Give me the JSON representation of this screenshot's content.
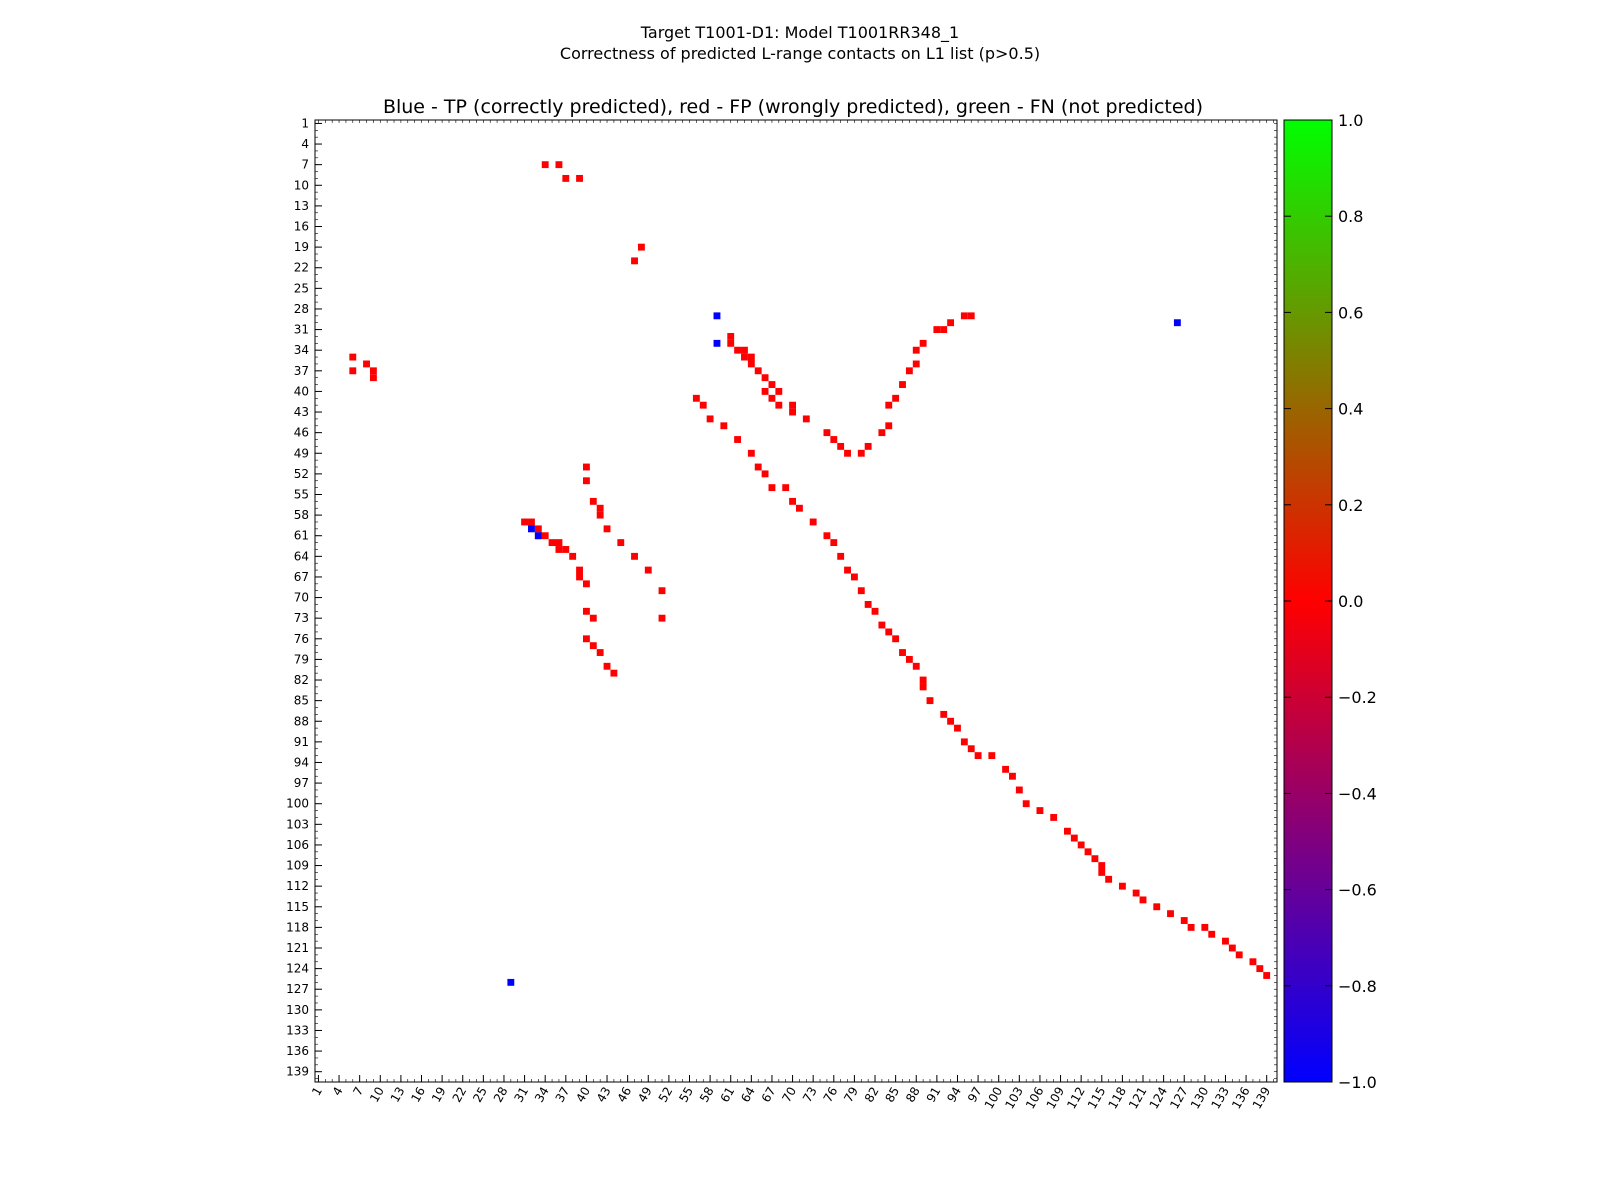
{
  "chart_data": {
    "type": "heatmap",
    "suptitle_line1": "Target T1001-D1: Model T1001RR348_1",
    "suptitle_line2": "Correctness of predicted L-range contacts on L1 list (p>0.5)",
    "title": "Blue - TP (correctly predicted), red - FP (wrongly predicted), green - FN (not predicted)",
    "n_residues": 140,
    "tick_labels": [
      "1",
      "4",
      "7",
      "10",
      "13",
      "16",
      "19",
      "22",
      "25",
      "28",
      "31",
      "34",
      "37",
      "40",
      "43",
      "46",
      "49",
      "52",
      "55",
      "58",
      "61",
      "64",
      "67",
      "70",
      "73",
      "76",
      "79",
      "82",
      "85",
      "88",
      "91",
      "94",
      "97",
      "100",
      "103",
      "106",
      "109",
      "112",
      "115",
      "118",
      "121",
      "124",
      "127",
      "130",
      "133",
      "136",
      "139"
    ],
    "colorbar": {
      "min": -1.0,
      "max": 1.0,
      "ticks": [
        "1.0",
        "0.8",
        "0.6",
        "0.4",
        "0.2",
        "0.0",
        "−0.2",
        "−0.4",
        "−0.6",
        "−0.8",
        "−1.0"
      ],
      "colors": [
        "#0000ff",
        "#ff0000",
        "#00ff00"
      ]
    },
    "colors": {
      "TP": "#0000ff",
      "FP": "#ff0000",
      "FN": "#33cc00"
    },
    "cells": {
      "TP": [
        [
          60,
          32
        ],
        [
          61,
          33
        ],
        [
          126,
          29
        ],
        [
          30,
          126
        ],
        [
          29,
          59
        ],
        [
          33,
          59
        ]
      ],
      "FP": [
        [
          35,
          6
        ],
        [
          36,
          8
        ],
        [
          37,
          6
        ],
        [
          37,
          9
        ],
        [
          38,
          9
        ],
        [
          32,
          61
        ],
        [
          33,
          61
        ],
        [
          34,
          62
        ],
        [
          34,
          63
        ],
        [
          35,
          63
        ],
        [
          35,
          64
        ],
        [
          36,
          64
        ],
        [
          37,
          65
        ],
        [
          38,
          66
        ],
        [
          39,
          67
        ],
        [
          40,
          66
        ],
        [
          40,
          68
        ],
        [
          41,
          67
        ],
        [
          42,
          68
        ],
        [
          42,
          70
        ],
        [
          43,
          70
        ],
        [
          44,
          72
        ],
        [
          46,
          75
        ],
        [
          47,
          76
        ],
        [
          48,
          77
        ],
        [
          49,
          78
        ],
        [
          49,
          80
        ],
        [
          48,
          81
        ],
        [
          46,
          83
        ],
        [
          45,
          84
        ],
        [
          42,
          84
        ],
        [
          41,
          85
        ],
        [
          39,
          86
        ],
        [
          37,
          87
        ],
        [
          36,
          88
        ],
        [
          34,
          88
        ],
        [
          33,
          89
        ],
        [
          31,
          91
        ],
        [
          31,
          92
        ],
        [
          30,
          93
        ],
        [
          29,
          95
        ],
        [
          29,
          96
        ],
        [
          7,
          34
        ],
        [
          7,
          36
        ],
        [
          9,
          37
        ],
        [
          9,
          39
        ],
        [
          19,
          48
        ],
        [
          21,
          47
        ],
        [
          59,
          31
        ],
        [
          59,
          32
        ],
        [
          60,
          33
        ],
        [
          61,
          33
        ],
        [
          61,
          34
        ],
        [
          62,
          35
        ],
        [
          62,
          36
        ],
        [
          63,
          36
        ],
        [
          63,
          37
        ],
        [
          64,
          38
        ],
        [
          66,
          39
        ],
        [
          67,
          39
        ],
        [
          68,
          40
        ],
        [
          72,
          40
        ],
        [
          73,
          41
        ],
        [
          76,
          40
        ],
        [
          77,
          41
        ],
        [
          78,
          42
        ],
        [
          80,
          43
        ],
        [
          81,
          44
        ],
        [
          73,
          51
        ],
        [
          69,
          51
        ],
        [
          66,
          49
        ],
        [
          64,
          47
        ],
        [
          62,
          45
        ],
        [
          60,
          43
        ],
        [
          58,
          42
        ],
        [
          57,
          42
        ],
        [
          56,
          41
        ],
        [
          53,
          40
        ],
        [
          51,
          40
        ],
        [
          41,
          56
        ],
        [
          42,
          57
        ],
        [
          44,
          58
        ],
        [
          45,
          60
        ],
        [
          47,
          62
        ],
        [
          49,
          64
        ],
        [
          51,
          65
        ],
        [
          52,
          66
        ],
        [
          54,
          67
        ],
        [
          54,
          69
        ],
        [
          56,
          70
        ],
        [
          57,
          71
        ],
        [
          59,
          73
        ],
        [
          61,
          75
        ],
        [
          62,
          76
        ],
        [
          64,
          77
        ],
        [
          66,
          78
        ],
        [
          67,
          79
        ],
        [
          69,
          80
        ],
        [
          71,
          81
        ],
        [
          72,
          82
        ],
        [
          74,
          83
        ],
        [
          75,
          84
        ],
        [
          76,
          85
        ],
        [
          78,
          86
        ],
        [
          79,
          87
        ],
        [
          80,
          88
        ],
        [
          82,
          89
        ],
        [
          83,
          89
        ],
        [
          85,
          90
        ],
        [
          87,
          92
        ],
        [
          88,
          93
        ],
        [
          89,
          94
        ],
        [
          91,
          95
        ],
        [
          92,
          96
        ],
        [
          93,
          97
        ],
        [
          93,
          99
        ],
        [
          95,
          101
        ],
        [
          96,
          102
        ],
        [
          98,
          103
        ],
        [
          100,
          104
        ],
        [
          101,
          106
        ],
        [
          102,
          108
        ],
        [
          104,
          110
        ],
        [
          105,
          111
        ],
        [
          106,
          112
        ],
        [
          107,
          113
        ],
        [
          108,
          114
        ],
        [
          109,
          115
        ],
        [
          110,
          115
        ],
        [
          111,
          116
        ],
        [
          112,
          118
        ],
        [
          113,
          120
        ],
        [
          114,
          121
        ],
        [
          115,
          123
        ],
        [
          116,
          125
        ],
        [
          117,
          127
        ],
        [
          118,
          128
        ],
        [
          118,
          130
        ],
        [
          119,
          131
        ],
        [
          120,
          133
        ],
        [
          121,
          134
        ],
        [
          122,
          135
        ],
        [
          123,
          137
        ],
        [
          124,
          138
        ],
        [
          125,
          139
        ]
      ]
    }
  }
}
